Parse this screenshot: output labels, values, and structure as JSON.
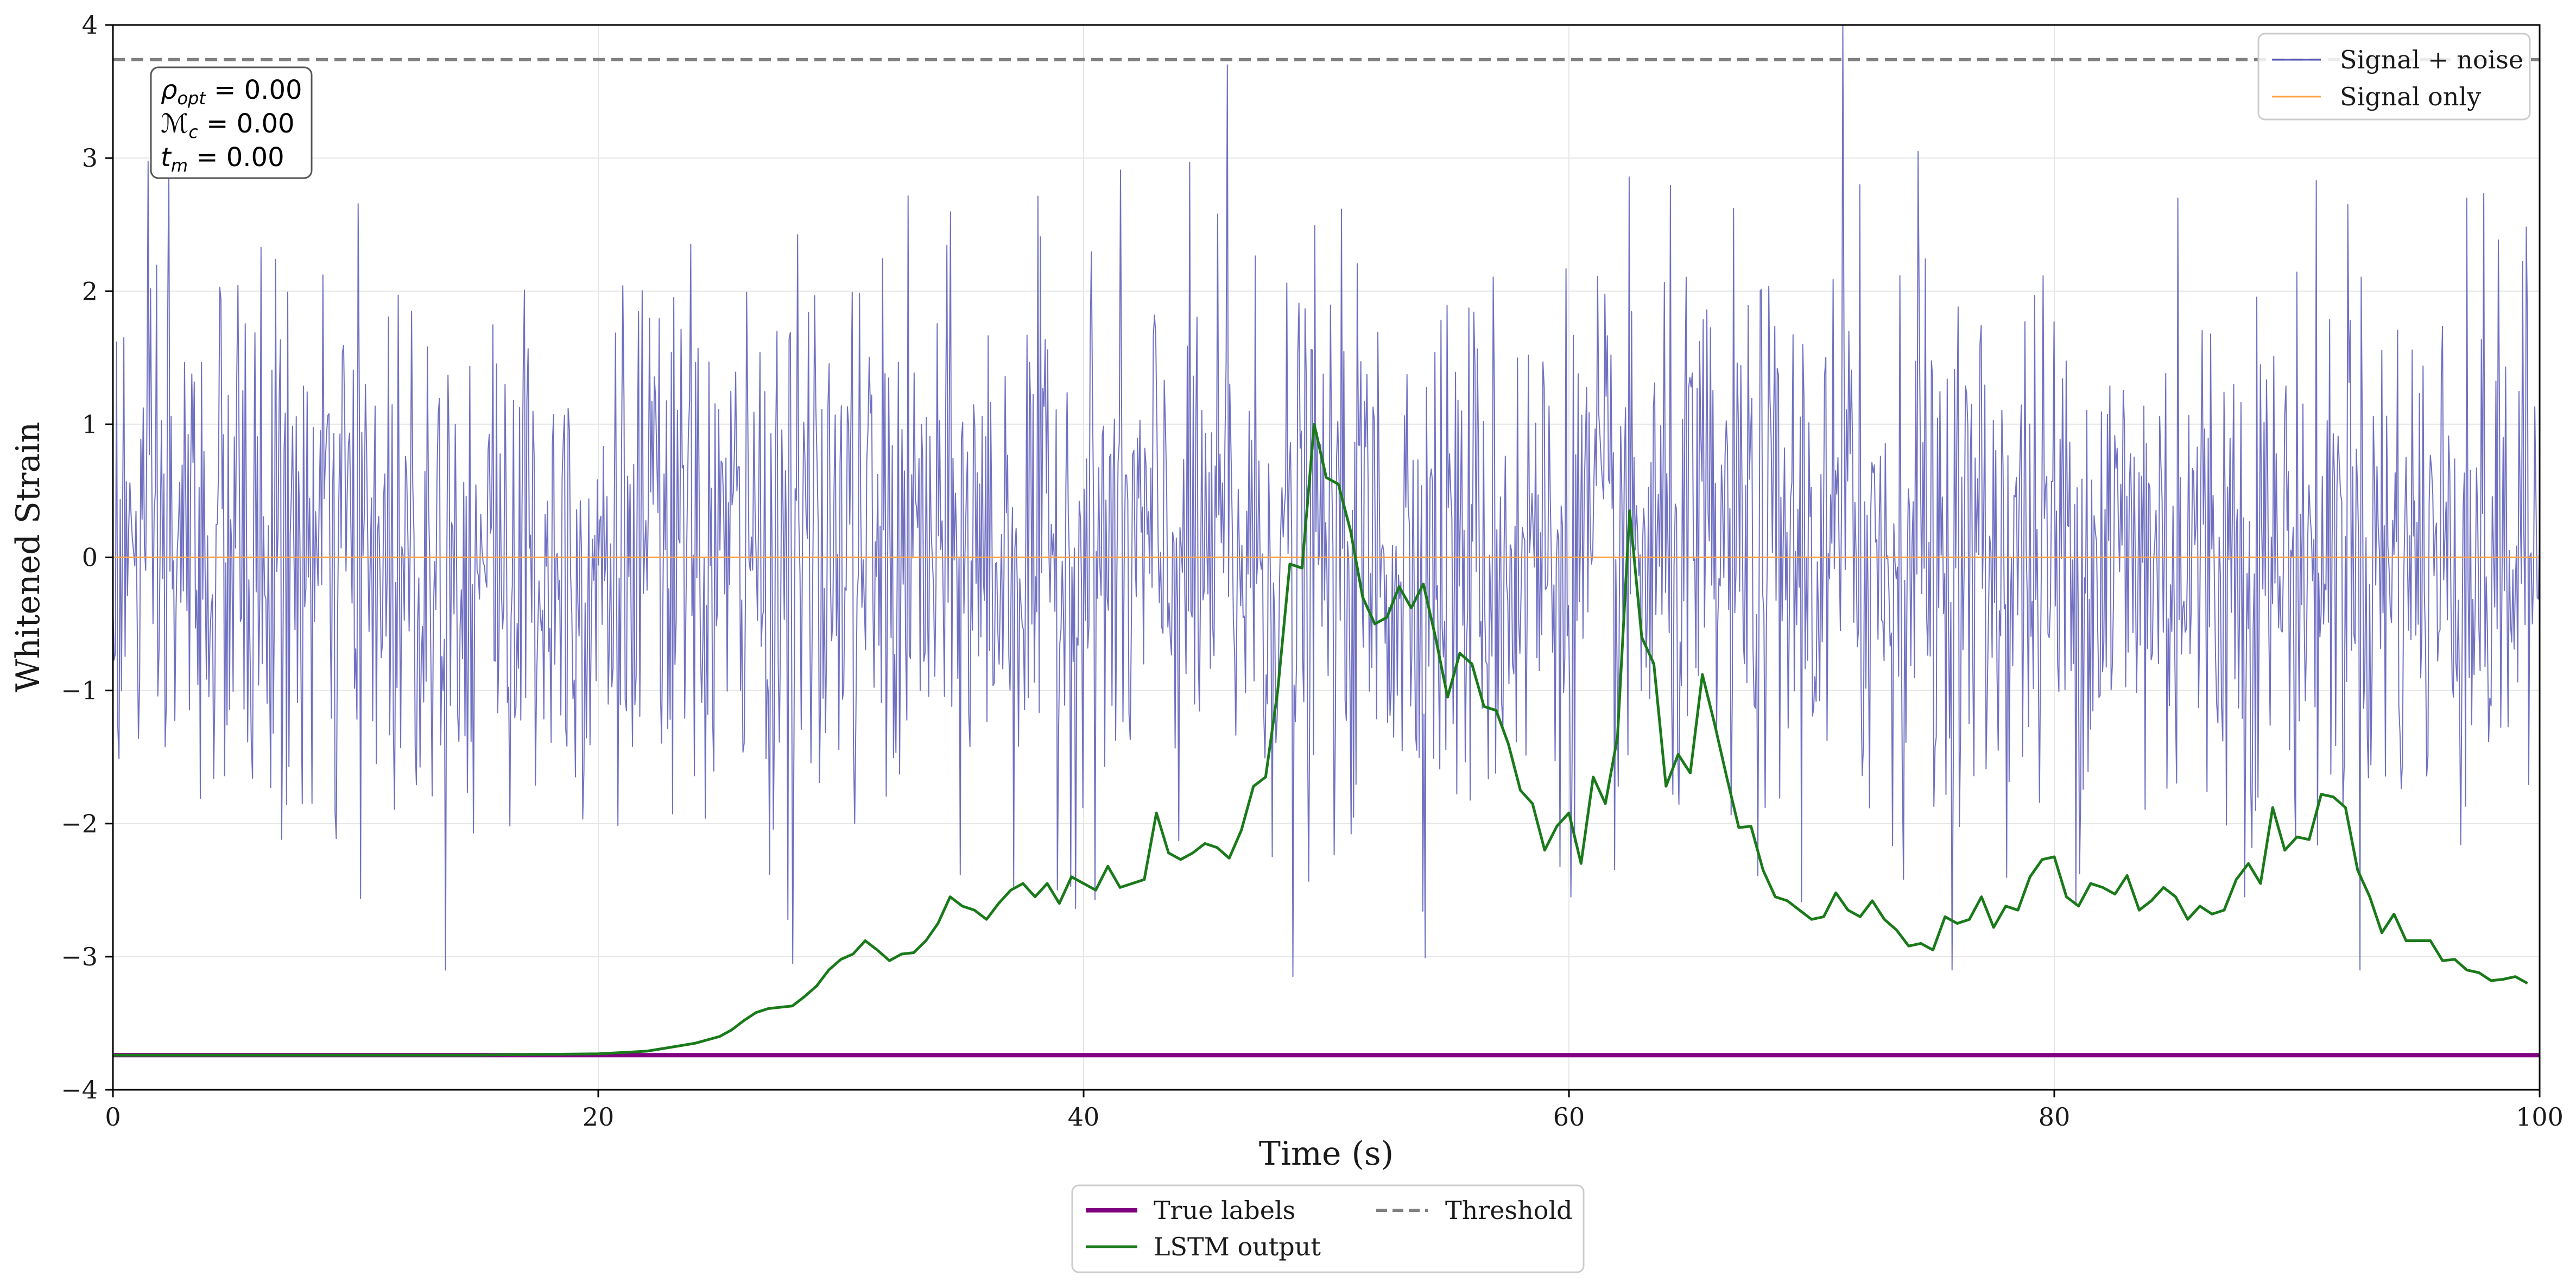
{
  "chart_data": {
    "type": "line",
    "xlabel": "Time (s)",
    "ylabel": "Whitened Strain",
    "xlim": [
      0,
      100
    ],
    "ylim": [
      -4,
      4
    ],
    "xticks": [
      0,
      20,
      40,
      60,
      80,
      100
    ],
    "yticks": [
      -4,
      -3,
      -2,
      -1,
      0,
      1,
      2,
      3,
      4
    ],
    "xtick_labels": [
      "0",
      "20",
      "40",
      "60",
      "80",
      "100"
    ],
    "ytick_labels": [
      "−4",
      "−3",
      "−2",
      "−1",
      "0",
      "1",
      "2",
      "3",
      "4"
    ],
    "grid": true,
    "annotation": {
      "rho": {
        "sym": "ρ",
        "sub": "opt",
        "value": " = 0.00"
      },
      "mc": {
        "sym": "ℳ",
        "sub": "c",
        "value": " = 0.00"
      },
      "tm": {
        "sym": "t",
        "sub": "m",
        "value": " = 0.00"
      }
    },
    "legend_upper": {
      "position": "top-right",
      "entries": [
        {
          "label": "Signal + noise",
          "color": "#5858b8"
        },
        {
          "label": "Signal only",
          "color": "#ffa54a"
        }
      ]
    },
    "legend_lower": {
      "position": "below-center",
      "entries": [
        {
          "label": "True labels",
          "color": "#800080"
        },
        {
          "label": "Threshold",
          "color": "#808080"
        },
        {
          "label": "LSTM output",
          "color": "#1a7a1a"
        }
      ]
    },
    "series": [
      {
        "name": "Signal + noise",
        "color": "#5858b8",
        "generator": {
          "type": "gaussian_noise",
          "n_points": 2000,
          "std": 1.0,
          "x_range": [
            0,
            100
          ]
        },
        "notable_peaks": {
          "x": [
            2.3,
            45.9,
            48.6,
            71.3,
            72.0,
            74.4,
            85.1,
            92.1,
            97.0,
            28.0
          ],
          "y": [
            3.05,
            3.7,
            -3.15,
            4.0,
            2.8,
            3.05,
            2.7,
            2.65,
            2.7,
            -3.05
          ]
        }
      },
      {
        "name": "Signal only",
        "color": "#ffa54a",
        "x": [
          0,
          100
        ],
        "y": [
          0,
          0
        ]
      },
      {
        "name": "True labels",
        "color": "#800080",
        "x": [
          0,
          100
        ],
        "y": [
          -3.74,
          -3.74
        ]
      },
      {
        "name": "Threshold",
        "color": "#808080",
        "dashed": true,
        "x": [
          0,
          100
        ],
        "y": [
          3.74,
          3.74
        ]
      },
      {
        "name": "LSTM output",
        "color": "#1a7a1a",
        "x": [
          0,
          5,
          10,
          15,
          17,
          20,
          21,
          22,
          23,
          24,
          25,
          25.5,
          26,
          26.5,
          27,
          27.5,
          28,
          28.5,
          29,
          29.5,
          30,
          30.5,
          31,
          31.5,
          32,
          32.5,
          33,
          33.5,
          34,
          34.5,
          35,
          35.5,
          36,
          36.5,
          37,
          37.5,
          38,
          38.5,
          39,
          39.5,
          40,
          40.5,
          41,
          41.5,
          42,
          42.5,
          43,
          43.5,
          44,
          44.5,
          45,
          45.5,
          46,
          46.5,
          47,
          47.5,
          48,
          48.5,
          49,
          49.5,
          50,
          50.5,
          51,
          51.5,
          52,
          52.5,
          53,
          53.5,
          54,
          54.5,
          55,
          55.5,
          56,
          56.5,
          57,
          57.5,
          58,
          58.5,
          59,
          59.5,
          60,
          60.5,
          61,
          61.5,
          62,
          62.5,
          63,
          63.5,
          64,
          64.5,
          65,
          65.5,
          66,
          66.5,
          67,
          67.5,
          68,
          68.5,
          69,
          69.5,
          70,
          70.5,
          71,
          71.5,
          72,
          72.5,
          73,
          73.5,
          74,
          74.5,
          75,
          75.5,
          76,
          76.5,
          77,
          77.5,
          78,
          78.5,
          79,
          79.5,
          80,
          80.5,
          81,
          81.5,
          82,
          82.5,
          83,
          83.5,
          84,
          84.5,
          85,
          85.5,
          86,
          86.5,
          87,
          87.5,
          88,
          88.5,
          89,
          89.5,
          90,
          90.5,
          91,
          91.5,
          92,
          92.5,
          93,
          93.5,
          94,
          94.5,
          95,
          95.5,
          96,
          96.5,
          97,
          97.5,
          98,
          98.5,
          99,
          99.5
        ],
        "y": [
          -3.74,
          -3.74,
          -3.74,
          -3.74,
          -3.735,
          -3.73,
          -3.72,
          -3.71,
          -3.68,
          -3.65,
          -3.6,
          -3.55,
          -3.48,
          -3.42,
          -3.39,
          -3.38,
          -3.37,
          -3.3,
          -3.22,
          -3.1,
          -3.02,
          -2.98,
          -2.88,
          -2.95,
          -3.03,
          -2.98,
          -2.97,
          -2.88,
          -2.75,
          -2.55,
          -2.62,
          -2.65,
          -2.72,
          -2.6,
          -2.5,
          -2.45,
          -2.55,
          -2.45,
          -2.6,
          -2.4,
          -2.45,
          -2.5,
          -2.32,
          -2.48,
          -2.45,
          -2.42,
          -1.92,
          -2.22,
          -2.27,
          -2.22,
          -2.15,
          -2.18,
          -2.26,
          -2.05,
          -1.72,
          -1.65,
          -1.0,
          -0.05,
          -0.08,
          1.0,
          0.6,
          0.55,
          0.2,
          -0.3,
          -0.5,
          -0.45,
          -0.22,
          -0.38,
          -0.2,
          -0.6,
          -1.05,
          -0.72,
          -0.8,
          -1.12,
          -1.15,
          -1.4,
          -1.75,
          -1.85,
          -2.2,
          -2.02,
          -1.92,
          -2.3,
          -1.65,
          -1.85,
          -1.35,
          0.35,
          -0.6,
          -0.8,
          -1.72,
          -1.48,
          -1.62,
          -0.88,
          -1.25,
          -1.65,
          -2.03,
          -2.02,
          -2.35,
          -2.55,
          -2.58,
          -2.65,
          -2.72,
          -2.7,
          -2.52,
          -2.65,
          -2.7,
          -2.58,
          -2.72,
          -2.8,
          -2.92,
          -2.9,
          -2.95,
          -2.7,
          -2.75,
          -2.72,
          -2.55,
          -2.78,
          -2.62,
          -2.65,
          -2.4,
          -2.27,
          -2.25,
          -2.55,
          -2.62,
          -2.45,
          -2.48,
          -2.53,
          -2.39,
          -2.65,
          -2.58,
          -2.48,
          -2.55,
          -2.72,
          -2.62,
          -2.68,
          -2.65,
          -2.42,
          -2.3,
          -2.45,
          -1.88,
          -2.2,
          -2.1,
          -2.12,
          -1.78,
          -1.8,
          -1.88,
          -2.35,
          -2.55,
          -2.82,
          -2.68,
          -2.88,
          -2.88,
          -2.88,
          -3.03,
          -3.02,
          -3.1,
          -3.12,
          -3.18,
          -3.17,
          -3.15,
          -3.2
        ]
      }
    ]
  }
}
